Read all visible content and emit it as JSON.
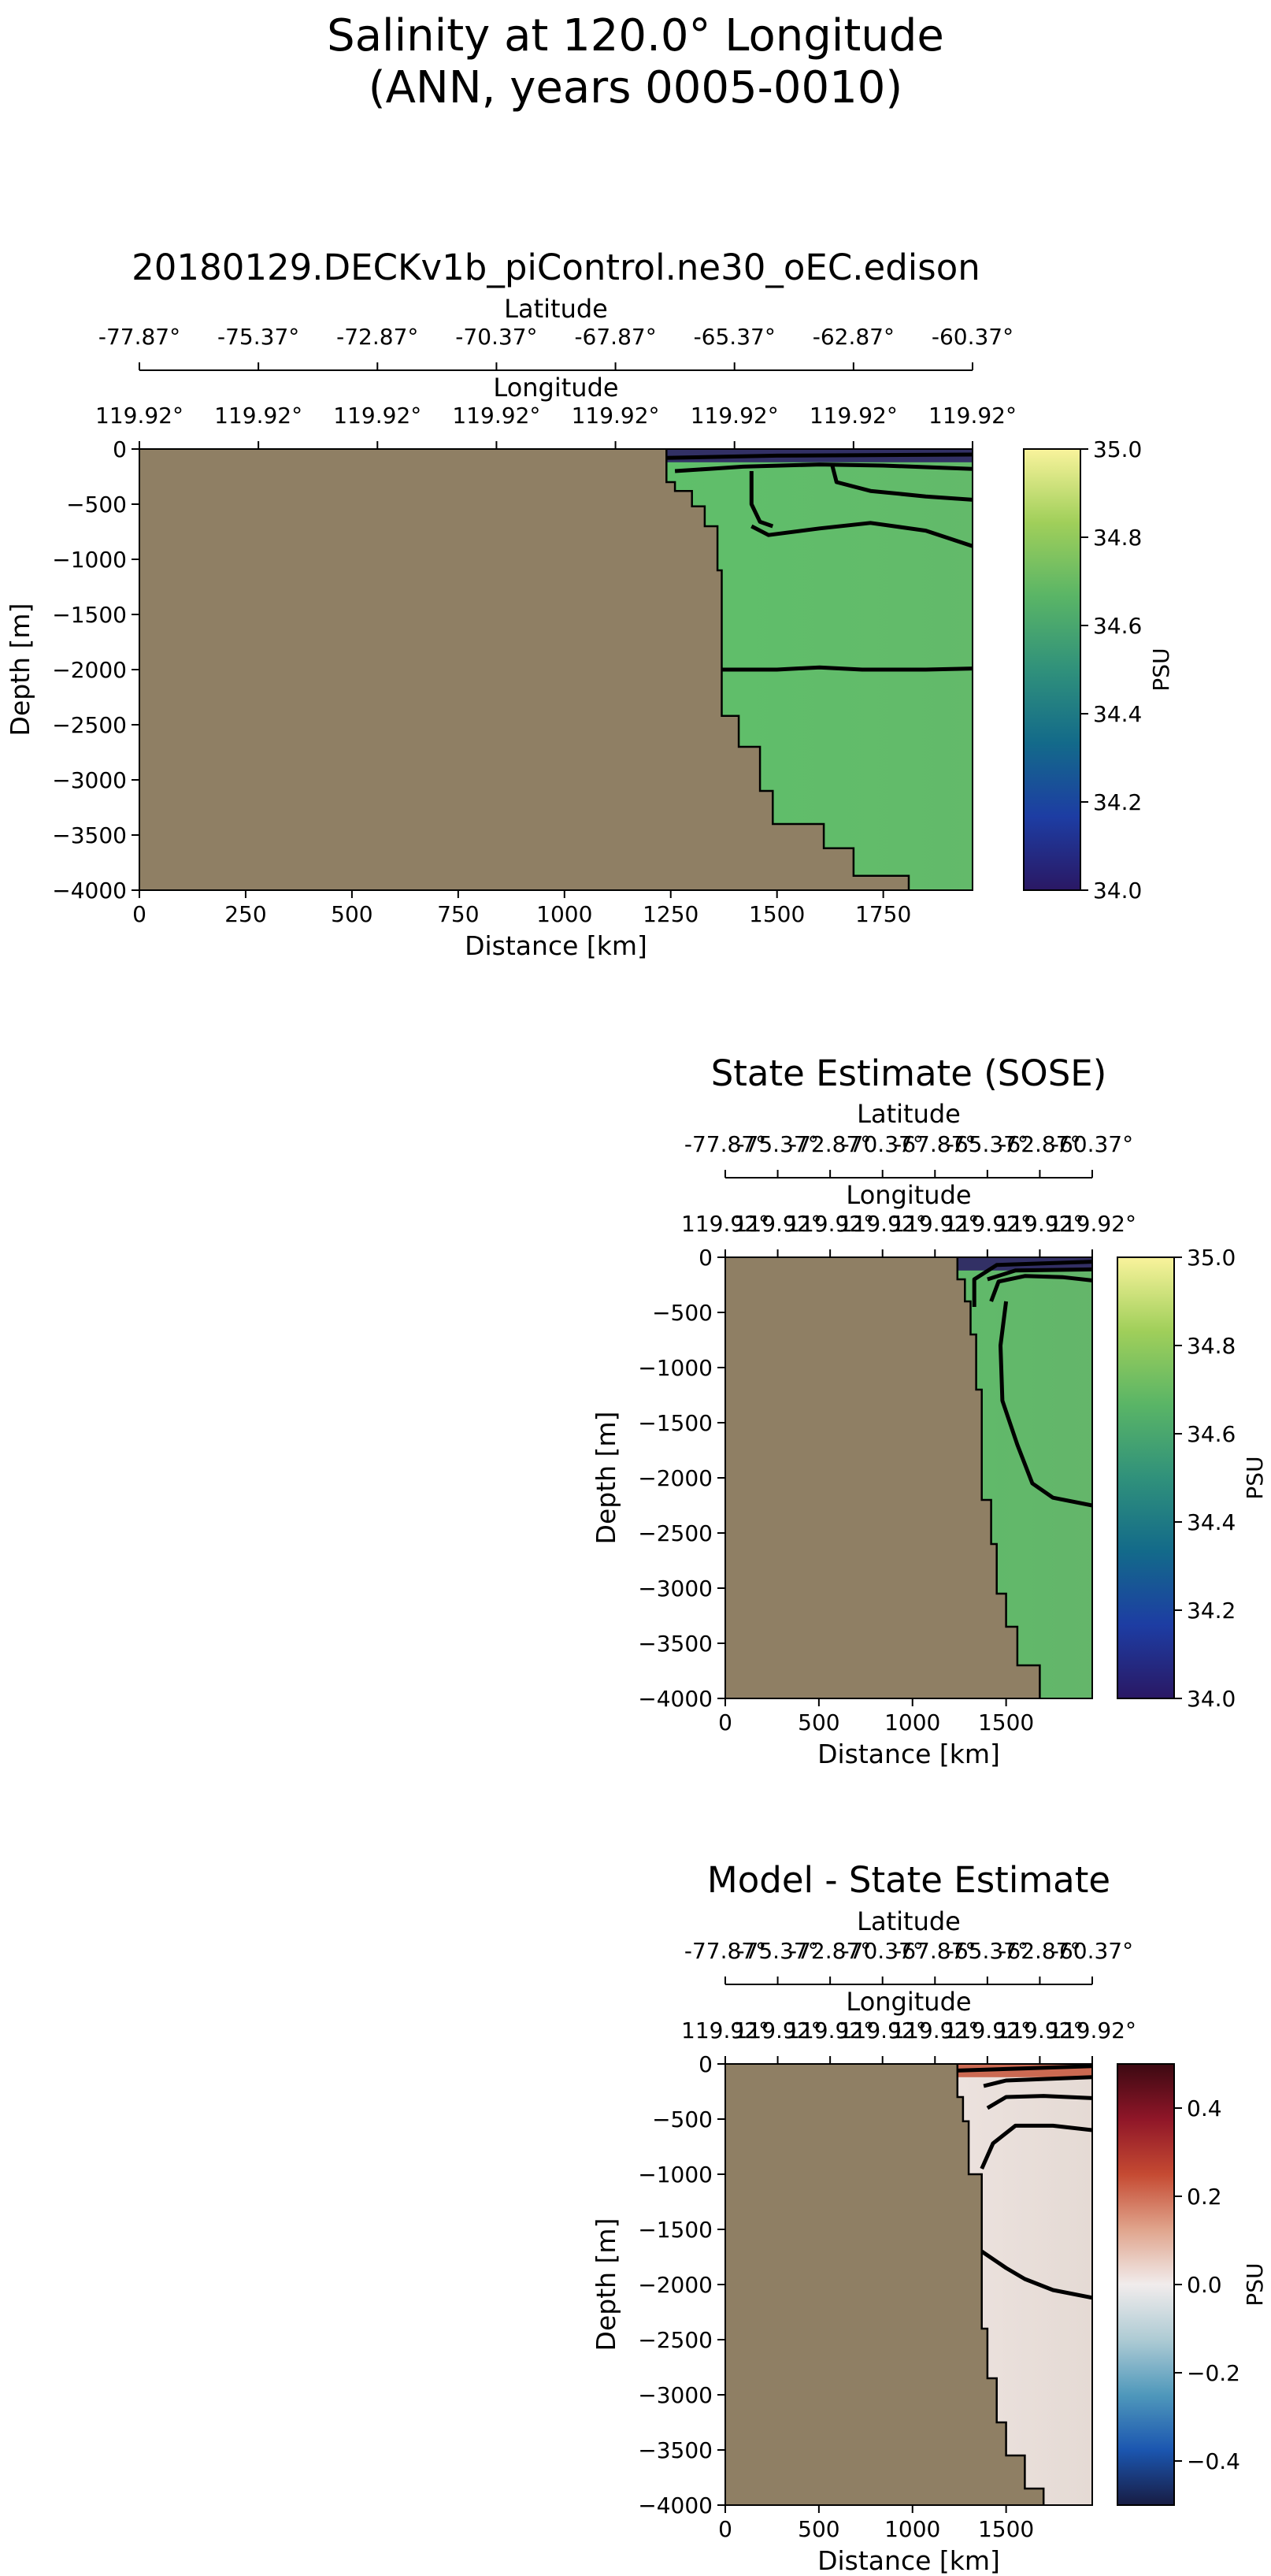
{
  "figure": {
    "title_line1": "Salinity at 120.0° Longitude",
    "title_line2": "(ANN, years 0005-0010)"
  },
  "chart_data": [
    {
      "type": "heatmap",
      "title": "20180129.DECKv1b_piControl.ne30_oEC.edison",
      "xlabel": "Distance [km]",
      "ylabel": "Depth [m]",
      "xlim": [
        0,
        1960
      ],
      "ylim": [
        -4000,
        0
      ],
      "x_ticks": [
        0,
        250,
        500,
        750,
        1000,
        1250,
        1500,
        1750
      ],
      "x_tick_labels": [
        "0",
        "250",
        "500",
        "750",
        "1000",
        "1250",
        "1500",
        "1750"
      ],
      "y_ticks": [
        0,
        -500,
        -1000,
        -1500,
        -2000,
        -2500,
        -3000,
        -3500,
        -4000
      ],
      "y_tick_labels": [
        "0",
        "−500",
        "−1000",
        "−1500",
        "−2000",
        "−2500",
        "−3000",
        "−3500",
        "−4000"
      ],
      "top_axes": [
        {
          "label": "Latitude",
          "tick_labels": [
            "-77.87°",
            "-75.37°",
            "-72.87°",
            "-70.37°",
            "-67.87°",
            "-65.37°",
            "-62.87°",
            "-60.37°"
          ]
        },
        {
          "label": "Longitude",
          "tick_labels": [
            "119.92°",
            "119.92°",
            "119.92°",
            "119.92°",
            "119.92°",
            "119.92°",
            "119.92°",
            "119.92°"
          ]
        }
      ],
      "colorbar": {
        "label": "PSU",
        "range": [
          34.0,
          35.0
        ],
        "ticks": [
          34.0,
          34.2,
          34.4,
          34.6,
          34.8,
          35.0
        ],
        "tick_labels": [
          "34.0",
          "34.2",
          "34.4",
          "34.6",
          "34.8",
          "35.0"
        ],
        "colormap": "haline",
        "stops": [
          "#2a1864",
          "#1d3da3",
          "#136a8a",
          "#30917b",
          "#5ab566",
          "#a0cf5a",
          "#f9f39c"
        ]
      },
      "land_color": "#8f7f64",
      "ocean_fill": "#5fbf6a",
      "shelf_fill": "#2a1864",
      "bathymetry": [
        [
          1240,
          0
        ],
        [
          1240,
          -300
        ],
        [
          1260,
          -300
        ],
        [
          1260,
          -380
        ],
        [
          1300,
          -380
        ],
        [
          1300,
          -520
        ],
        [
          1330,
          -520
        ],
        [
          1330,
          -700
        ],
        [
          1360,
          -700
        ],
        [
          1360,
          -1100
        ],
        [
          1370,
          -1100
        ],
        [
          1370,
          -2420
        ],
        [
          1410,
          -2420
        ],
        [
          1410,
          -2700
        ],
        [
          1460,
          -2700
        ],
        [
          1460,
          -3100
        ],
        [
          1490,
          -3100
        ],
        [
          1490,
          -3400
        ],
        [
          1610,
          -3400
        ],
        [
          1610,
          -3620
        ],
        [
          1680,
          -3620
        ],
        [
          1680,
          -3870
        ],
        [
          1810,
          -3870
        ],
        [
          1810,
          -4000
        ]
      ],
      "contours": [
        [
          [
            1370,
            -2000
          ],
          [
            1500,
            -2000
          ],
          [
            1600,
            -1980
          ],
          [
            1700,
            -2000
          ],
          [
            1850,
            -2000
          ],
          [
            1960,
            -1990
          ]
        ],
        [
          [
            1440,
            -700
          ],
          [
            1480,
            -780
          ],
          [
            1600,
            -720
          ],
          [
            1720,
            -670
          ],
          [
            1850,
            -740
          ],
          [
            1960,
            -880
          ]
        ],
        [
          [
            1440,
            -200
          ],
          [
            1440,
            -500
          ],
          [
            1460,
            -660
          ],
          [
            1490,
            -700
          ]
        ],
        [
          [
            1630,
            -150
          ],
          [
            1640,
            -300
          ],
          [
            1720,
            -380
          ],
          [
            1850,
            -430
          ],
          [
            1960,
            -460
          ]
        ],
        [
          [
            1260,
            -200
          ],
          [
            1340,
            -180
          ],
          [
            1420,
            -160
          ],
          [
            1600,
            -140
          ],
          [
            1750,
            -150
          ],
          [
            1960,
            -180
          ]
        ],
        [
          [
            1240,
            -80
          ],
          [
            1500,
            -60
          ],
          [
            1960,
            -50
          ]
        ]
      ]
    },
    {
      "type": "heatmap",
      "title": "State Estimate (SOSE)",
      "xlabel": "Distance [km]",
      "ylabel": "Depth [m]",
      "xlim": [
        0,
        1960
      ],
      "ylim": [
        -4000,
        0
      ],
      "x_ticks": [
        0,
        500,
        1000,
        1500
      ],
      "x_tick_labels": [
        "0",
        "500",
        "1000",
        "1500"
      ],
      "y_ticks": [
        0,
        -500,
        -1000,
        -1500,
        -2000,
        -2500,
        -3000,
        -3500,
        -4000
      ],
      "y_tick_labels": [
        "0",
        "−500",
        "−1000",
        "−1500",
        "−2000",
        "−2500",
        "−3000",
        "−3500",
        "−4000"
      ],
      "top_axes": [
        {
          "label": "Latitude",
          "tick_labels": [
            "-77.87°",
            "-75.37°",
            "-72.87°",
            "-70.37°",
            "-67.87°",
            "-65.37°",
            "-62.87°",
            "-60.37°"
          ]
        },
        {
          "label": "Longitude",
          "tick_labels": [
            "119.92°",
            "119.92°",
            "119.92°",
            "119.92°",
            "119.92°",
            "119.92°",
            "119.92°",
            "119.92°"
          ]
        }
      ],
      "colorbar": {
        "label": "PSU",
        "range": [
          34.0,
          35.0
        ],
        "ticks": [
          34.0,
          34.2,
          34.4,
          34.6,
          34.8,
          35.0
        ],
        "tick_labels": [
          "34.0",
          "34.2",
          "34.4",
          "34.6",
          "34.8",
          "35.0"
        ],
        "colormap": "haline",
        "stops": [
          "#2a1864",
          "#1d3da3",
          "#136a8a",
          "#30917b",
          "#5ab566",
          "#a0cf5a",
          "#f9f39c"
        ]
      },
      "land_color": "#8f7f64",
      "ocean_fill": "#60ba6a",
      "shelf_fill": "#2a1864",
      "bathymetry": [
        [
          1240,
          0
        ],
        [
          1240,
          -200
        ],
        [
          1280,
          -200
        ],
        [
          1280,
          -400
        ],
        [
          1310,
          -400
        ],
        [
          1310,
          -700
        ],
        [
          1340,
          -700
        ],
        [
          1340,
          -1200
        ],
        [
          1370,
          -1200
        ],
        [
          1370,
          -2200
        ],
        [
          1420,
          -2200
        ],
        [
          1420,
          -2600
        ],
        [
          1450,
          -2600
        ],
        [
          1450,
          -3050
        ],
        [
          1500,
          -3050
        ],
        [
          1500,
          -3350
        ],
        [
          1560,
          -3350
        ],
        [
          1560,
          -3700
        ],
        [
          1680,
          -3700
        ],
        [
          1680,
          -4000
        ]
      ],
      "contours": [
        [
          [
            1500,
            -400
          ],
          [
            1470,
            -800
          ],
          [
            1480,
            -1300
          ],
          [
            1560,
            -1700
          ],
          [
            1640,
            -2050
          ],
          [
            1750,
            -2180
          ],
          [
            1960,
            -2250
          ]
        ],
        [
          [
            1420,
            -400
          ],
          [
            1460,
            -220
          ],
          [
            1600,
            -170
          ],
          [
            1800,
            -180
          ],
          [
            1960,
            -210
          ]
        ],
        [
          [
            1400,
            -200
          ],
          [
            1550,
            -120
          ],
          [
            1960,
            -110
          ]
        ],
        [
          [
            1330,
            -450
          ],
          [
            1330,
            -200
          ],
          [
            1450,
            -70
          ],
          [
            1960,
            -40
          ]
        ]
      ]
    },
    {
      "type": "heatmap",
      "title": "Model - State Estimate",
      "xlabel": "Distance [km]",
      "ylabel": "Depth [m]",
      "xlim": [
        0,
        1960
      ],
      "ylim": [
        -4000,
        0
      ],
      "x_ticks": [
        0,
        500,
        1000,
        1500
      ],
      "x_tick_labels": [
        "0",
        "500",
        "1000",
        "1500"
      ],
      "y_ticks": [
        0,
        -500,
        -1000,
        -1500,
        -2000,
        -2500,
        -3000,
        -3500,
        -4000
      ],
      "y_tick_labels": [
        "0",
        "−500",
        "−1000",
        "−1500",
        "−2000",
        "−2500",
        "−3000",
        "−3500",
        "−4000"
      ],
      "top_axes": [
        {
          "label": "Latitude",
          "tick_labels": [
            "-77.87°",
            "-75.37°",
            "-72.87°",
            "-70.37°",
            "-67.87°",
            "-65.37°",
            "-62.87°",
            "-60.37°"
          ]
        },
        {
          "label": "Longitude",
          "tick_labels": [
            "119.92°",
            "119.92°",
            "119.92°",
            "119.92°",
            "119.92°",
            "119.92°",
            "119.92°",
            "119.92°"
          ]
        }
      ],
      "colorbar": {
        "label": "PSU",
        "range": [
          -0.5,
          0.5
        ],
        "ticks": [
          -0.4,
          -0.2,
          0.0,
          0.2,
          0.4
        ],
        "tick_labels": [
          "−0.4",
          "−0.2",
          "0.0",
          "0.2",
          "0.4"
        ],
        "colormap": "balance",
        "stops": [
          "#181c43",
          "#1b56b0",
          "#4f98bb",
          "#aecbd4",
          "#f1ecec",
          "#e0a48c",
          "#c54a32",
          "#8f1628",
          "#3c0912"
        ]
      },
      "land_color": "#8f7f64",
      "ocean_fill": "#ece2de",
      "shelf_fill": "#c5553a",
      "bathymetry": [
        [
          1240,
          0
        ],
        [
          1240,
          -300
        ],
        [
          1270,
          -300
        ],
        [
          1270,
          -520
        ],
        [
          1300,
          -520
        ],
        [
          1300,
          -1000
        ],
        [
          1370,
          -1000
        ],
        [
          1370,
          -2400
        ],
        [
          1400,
          -2400
        ],
        [
          1400,
          -2850
        ],
        [
          1450,
          -2850
        ],
        [
          1450,
          -3250
        ],
        [
          1500,
          -3250
        ],
        [
          1500,
          -3550
        ],
        [
          1600,
          -3550
        ],
        [
          1600,
          -3850
        ],
        [
          1700,
          -3850
        ],
        [
          1700,
          -4000
        ]
      ],
      "contours": [
        [
          [
            1370,
            -1700
          ],
          [
            1500,
            -1850
          ],
          [
            1600,
            -1950
          ],
          [
            1750,
            -2050
          ],
          [
            1960,
            -2120
          ]
        ],
        [
          [
            1370,
            -950
          ],
          [
            1430,
            -720
          ],
          [
            1550,
            -560
          ],
          [
            1750,
            -560
          ],
          [
            1960,
            -600
          ]
        ],
        [
          [
            1400,
            -400
          ],
          [
            1500,
            -300
          ],
          [
            1700,
            -290
          ],
          [
            1960,
            -310
          ]
        ],
        [
          [
            1380,
            -200
          ],
          [
            1500,
            -150
          ],
          [
            1960,
            -120
          ]
        ],
        [
          [
            1240,
            -60
          ],
          [
            1600,
            -40
          ],
          [
            1960,
            -20
          ]
        ]
      ]
    }
  ]
}
